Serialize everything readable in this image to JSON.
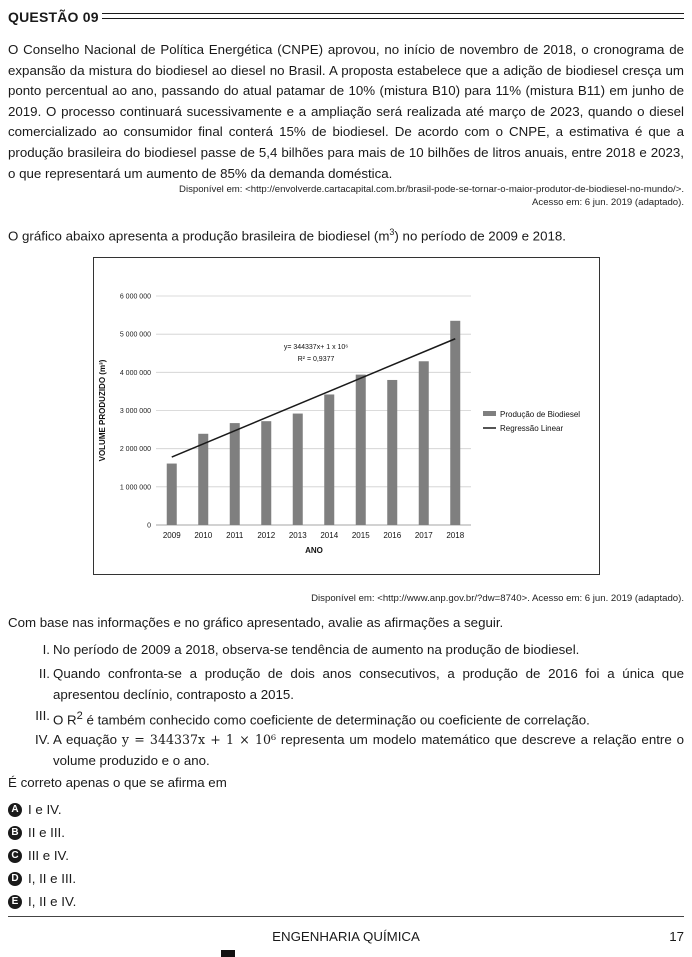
{
  "question": {
    "title": "QUESTÃO 09",
    "paragraph": "O Conselho Nacional de Política Energética (CNPE) aprovou, no início de novembro de 2018, o cronograma de expansão da mistura do biodiesel ao diesel no Brasil. A proposta estabelece que a adição de biodiesel cresça um ponto percentual ao ano, passando do atual patamar de 10% (mistura B10) para 11% (mistura B11) em junho de 2019. O processo continuará sucessivamente e a ampliação será realizada até março de 2023, quando o diesel comercializado ao consumidor final conterá 15% de biodiesel. De acordo com o CNPE, a estimativa é que a produção brasileira do biodiesel passe de 5,4 bilhões para mais de 10 bilhões de litros anuais, entre 2018 e 2023, o que representará um aumento de 85% da demanda doméstica.",
    "source1_line1": "Disponível em: <http://envolverde.cartacapital.com.br/brasil-pode-se-tornar-o-maior-produtor-de-biodiesel-no-mundo/>.",
    "source1_line2": "Acesso em: 6 jun. 2019 (adaptado).",
    "intro_before": "O gráfico abaixo apresenta a produção brasileira de biodiesel (m",
    "intro_sup": "3",
    "intro_after": ") no período de 2009 e 2018.",
    "source2": "Disponível em: <http://www.anp.gov.br/?dw=8740>. Acesso em: 6 jun. 2019 (adaptado).",
    "lead": "Com base nas informações e no gráfico apresentado, avalie as afirmações a seguir.",
    "statements": [
      {
        "num": "I.",
        "text": "No período de 2009 a 2018, observa-se tendência de aumento na produção de biodiesel."
      },
      {
        "num": "II.",
        "text": "Quando confronta-se a produção de dois anos consecutivos, a produção de 2016 foi a única que apresentou declínio, contraposto a 2015."
      },
      {
        "num": "III.",
        "text_before": "O R",
        "text_sup": "2",
        "text_after": " é também conhecido como coeficiente de determinação ou coeficiente de correlação."
      },
      {
        "num": "IV.",
        "text_before": "A equação ",
        "math": "y = 344337x + 1 × 10⁶",
        "text_after": " representa um modelo matemático que descreve a relação entre o volume produzido e o ano."
      }
    ],
    "ask": "É correto apenas o que se afirma em",
    "options": [
      {
        "letter": "A",
        "text": "I e IV."
      },
      {
        "letter": "B",
        "text": "II e III."
      },
      {
        "letter": "C",
        "text": "III e IV."
      },
      {
        "letter": "D",
        "text": "I, II e III."
      },
      {
        "letter": "E",
        "text": "I, II e IV."
      }
    ]
  },
  "footer": {
    "course": "ENGENHARIA QUÍMICA",
    "page": "17"
  },
  "chart_data": {
    "type": "bar",
    "title": "",
    "xlabel": "ANO",
    "ylabel": "VOLUME PRODUZIDO (m³)",
    "categories": [
      "2009",
      "2010",
      "2011",
      "2012",
      "2013",
      "2014",
      "2015",
      "2016",
      "2017",
      "2018"
    ],
    "ylim": [
      0,
      6000000
    ],
    "yticks": [
      0,
      1000000,
      2000000,
      3000000,
      4000000,
      5000000,
      6000000
    ],
    "ytick_labels": [
      "0",
      "1 000 000",
      "2 000 000",
      "3 000 000",
      "4 000 000",
      "5 000 000",
      "6 000 000"
    ],
    "grid": true,
    "legend_position": "right",
    "series": [
      {
        "name": "Produção de Biodiesel",
        "type": "bar",
        "color": "#7f7f7f",
        "values": [
          1610000,
          2390000,
          2670000,
          2720000,
          2920000,
          3420000,
          3940000,
          3800000,
          4290000,
          5350000
        ]
      },
      {
        "name": "Regressão Linear",
        "type": "line",
        "color": "#1a1a1a",
        "start": [
          2009,
          1780000
        ],
        "end": [
          2018,
          4880000
        ]
      }
    ],
    "annotations": [
      "y= 344337x+ 1 x 10⁶",
      "R² = 0,9377"
    ]
  }
}
